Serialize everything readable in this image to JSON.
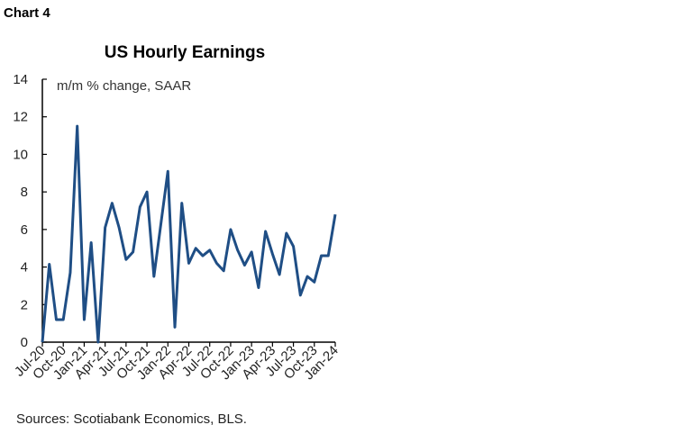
{
  "header": {
    "chart_label": "Chart 4"
  },
  "footer": {
    "source": "Sources: Scotiabank Economics, BLS."
  },
  "chart_data": {
    "type": "line",
    "title": "US Hourly Earnings",
    "subtitle": "m/m % change, SAAR",
    "xlabel": "",
    "ylabel": "",
    "ylim": [
      0,
      14
    ],
    "yticks": [
      0,
      2,
      4,
      6,
      8,
      10,
      12,
      14
    ],
    "x_tick_labels": [
      "Jul-20",
      "Oct-20",
      "Jan-21",
      "Apr-21",
      "Jul-21",
      "Oct-21",
      "Jan-22",
      "Apr-22",
      "Jul-22",
      "Oct-22",
      "Jan-23",
      "Apr-23",
      "Jul-23",
      "Oct-23",
      "Jan-24"
    ],
    "x": [
      "Jul-20",
      "Aug-20",
      "Sep-20",
      "Oct-20",
      "Nov-20",
      "Dec-20",
      "Jan-21",
      "Feb-21",
      "Mar-21",
      "Apr-21",
      "May-21",
      "Jun-21",
      "Jul-21",
      "Aug-21",
      "Sep-21",
      "Oct-21",
      "Nov-21",
      "Dec-21",
      "Jan-22",
      "Feb-22",
      "Mar-22",
      "Apr-22",
      "May-22",
      "Jun-22",
      "Jul-22",
      "Aug-22",
      "Sep-22",
      "Oct-22",
      "Nov-22",
      "Dec-22",
      "Jan-23",
      "Feb-23",
      "Mar-23",
      "Apr-23",
      "May-23",
      "Jun-23",
      "Jul-23",
      "Aug-23",
      "Sep-23",
      "Oct-23",
      "Nov-23",
      "Dec-23",
      "Jan-24"
    ],
    "series": [
      {
        "values": [
          0,
          4.15,
          1.2,
          1.2,
          3.7,
          11.5,
          1.2,
          5.3,
          0,
          6.1,
          7.4,
          6.1,
          4.4,
          4.8,
          7.2,
          8.0,
          3.5,
          6.3,
          9.1,
          0.8,
          7.4,
          4.2,
          5.0,
          4.6,
          4.9,
          4.2,
          3.8,
          6.0,
          4.9,
          4.1,
          4.8,
          2.9,
          5.9,
          4.7,
          3.6,
          5.8,
          5.1,
          2.5,
          3.5,
          3.2,
          4.6,
          4.6,
          6.8
        ],
        "color": "#1f4e85"
      }
    ],
    "grid": false,
    "legend": "none"
  }
}
